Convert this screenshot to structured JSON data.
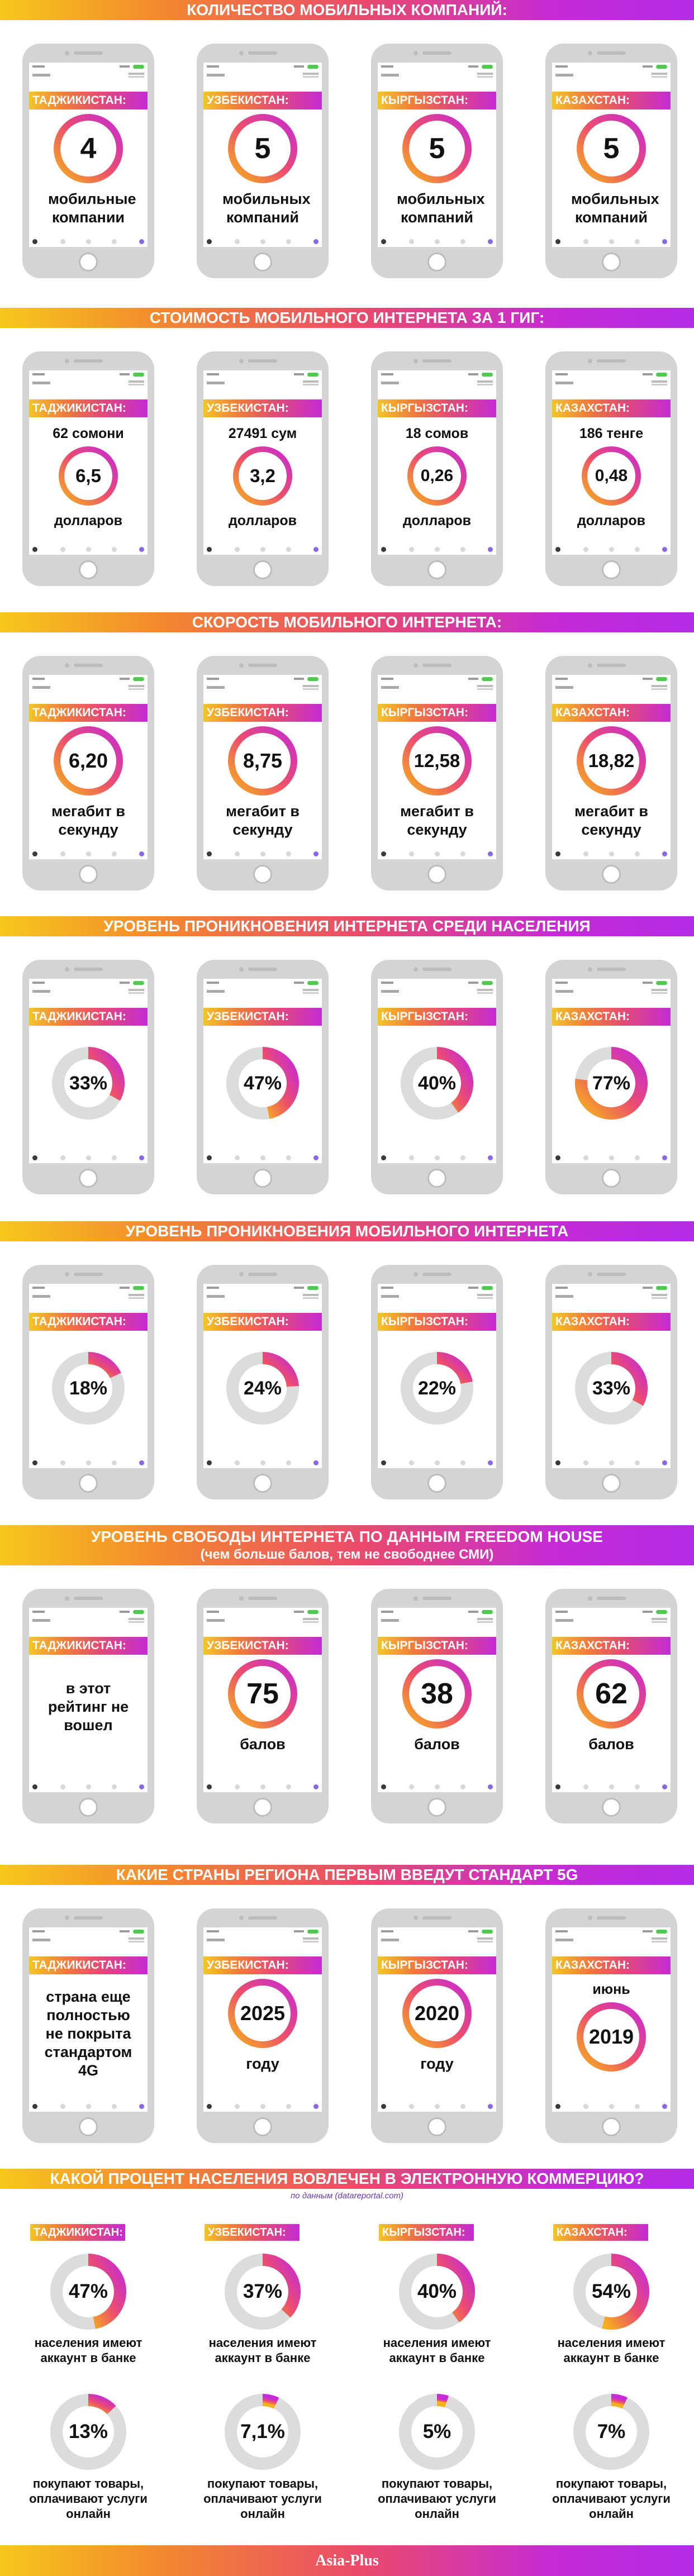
{
  "colors": {
    "ring_start": "#f6b21c",
    "ring_mid": "#ec4c6e",
    "ring_end": "#c52bd6",
    "track": "#dcdcdc"
  },
  "countries": [
    "ТАДЖИКИСТАН:",
    "УЗБЕКИСТАН:",
    "КЫРГЫЗСТАН:",
    "КАЗАХСТАН:"
  ],
  "sections": [
    {
      "title": "КОЛИЧЕСТВО МОБИЛЬНЫХ КОМПАНИЙ:",
      "kind": "ring",
      "items": [
        {
          "value": "4",
          "bottom": "мобильные компании",
          "fraction": 1
        },
        {
          "value": "5",
          "bottom": "мобильных компаний",
          "fraction": 1
        },
        {
          "value": "5",
          "bottom": "мобильных компаний",
          "fraction": 1
        },
        {
          "value": "5",
          "bottom": "мобильных компаний",
          "fraction": 1
        }
      ]
    },
    {
      "title": "СТОИМОСТЬ МОБИЛЬНОГО ИНТЕРНЕТА ЗА 1 ГИГ:",
      "kind": "ring_top",
      "items": [
        {
          "top": "62 сомони",
          "value": "6,5",
          "bottom": "долларов",
          "fraction": 1
        },
        {
          "top": "27491 сум",
          "value": "3,2",
          "bottom": "долларов",
          "fraction": 1
        },
        {
          "top": "18 сомов",
          "value": "0,26",
          "bottom": "долларов",
          "fraction": 1
        },
        {
          "top": "186 тенге",
          "value": "0,48",
          "bottom": "долларов",
          "fraction": 1
        }
      ]
    },
    {
      "title": "СКОРОСТЬ МОБИЛЬНОГО ИНТЕРНЕТА:",
      "kind": "ring",
      "items": [
        {
          "value": "6,20",
          "bottom": "мегабит в секунду",
          "fraction": 1
        },
        {
          "value": "8,75",
          "bottom": "мегабит в секунду",
          "fraction": 1
        },
        {
          "value": "12,58",
          "bottom": "мегабит в секунду",
          "fraction": 1
        },
        {
          "value": "18,82",
          "bottom": "мегабит в секунду",
          "fraction": 1
        }
      ]
    },
    {
      "title": "УРОВЕНЬ ПРОНИКНОВЕНИЯ ИНТЕРНЕТА СРЕДИ НАСЕЛЕНИЯ",
      "kind": "donut",
      "items": [
        {
          "value": "33%",
          "fraction": 0.33
        },
        {
          "value": "47%",
          "fraction": 0.47
        },
        {
          "value": "40%",
          "fraction": 0.4
        },
        {
          "value": "77%",
          "fraction": 0.77
        }
      ]
    },
    {
      "title": "УРОВЕНЬ ПРОНИКНОВЕНИЯ МОБИЛЬНОГО ИНТЕРНЕТА",
      "kind": "donut",
      "items": [
        {
          "value": "18%",
          "fraction": 0.18
        },
        {
          "value": "24%",
          "fraction": 0.24
        },
        {
          "value": "22%",
          "fraction": 0.22
        },
        {
          "value": "33%",
          "fraction": 0.33
        }
      ]
    },
    {
      "title": "УРОВЕНЬ СВОБОДЫ ИНТЕРНЕТА ПО ДАННЫМ FREEDOM HOUSE",
      "subtitle": "(чем больше балов, тем не свободнее СМИ)",
      "kind": "ring",
      "items": [
        {
          "text": "в этот рейтинг не вошел"
        },
        {
          "value": "75",
          "bottom": "балов",
          "fraction": 1
        },
        {
          "value": "38",
          "bottom": "балов",
          "fraction": 1
        },
        {
          "value": "62",
          "bottom": "балов",
          "fraction": 1
        }
      ]
    },
    {
      "title": "КАКИЕ СТРАНЫ РЕГИОНА ПЕРВЫМ ВВЕДУТ СТАНДАРТ 5G",
      "kind": "ring",
      "items": [
        {
          "text": "страна еще полностью не покрыта стандартом 4G"
        },
        {
          "value": "2025",
          "bottom": "году",
          "fraction": 1
        },
        {
          "value": "2020",
          "bottom": "году",
          "fraction": 1
        },
        {
          "top": "июнь",
          "value": "2019",
          "fraction": 1
        }
      ]
    }
  ],
  "ecommerce": {
    "title": "КАКОЙ ПРОЦЕНТ НАСЕЛЕНИЯ ВОВЛЕЧЕН В ЭЛЕКТРОННУЮ КОММЕРЦИЮ?",
    "source": "по данным (datareportal.com)",
    "bank_label": "населения имеют аккаунт в банке",
    "shop_label": "покупают товары, оплачивают услуги онлайн",
    "bank": [
      {
        "value": "47%",
        "fraction": 0.47
      },
      {
        "value": "37%",
        "fraction": 0.37
      },
      {
        "value": "40%",
        "fraction": 0.4
      },
      {
        "value": "54%",
        "fraction": 0.54
      }
    ],
    "shop": [
      {
        "value": "13%",
        "fraction": 0.13
      },
      {
        "value": "7,1%",
        "fraction": 0.071
      },
      {
        "value": "5%",
        "fraction": 0.05
      },
      {
        "value": "7%",
        "fraction": 0.07
      }
    ]
  },
  "footer": {
    "logo": "Asia-Plus"
  },
  "chart_data": [
    {
      "type": "table",
      "title": "КОЛИЧЕСТВО МОБИЛЬНЫХ КОМПАНИЙ:",
      "categories": [
        "ТАДЖИКИСТАН",
        "УЗБЕКИСТАН",
        "КЫРГЫЗСТАН",
        "КАЗАХСТАН"
      ],
      "values": [
        4,
        5,
        5,
        5
      ]
    },
    {
      "type": "table",
      "title": "СТОИМОСТЬ МОБИЛЬНОГО ИНТЕРНЕТА ЗА 1 ГИГ:",
      "categories": [
        "ТАДЖИКИСТАН",
        "УЗБЕКИСТАН",
        "КЫРГЫЗСТАН",
        "КАЗАХСТАН"
      ],
      "values": [
        6.5,
        3.2,
        0.26,
        0.48
      ],
      "ylabel": "долларов"
    },
    {
      "type": "table",
      "title": "СКОРОСТЬ МОБИЛЬНОГО ИНТЕРНЕТА:",
      "categories": [
        "ТАДЖИКИСТАН",
        "УЗБЕКИСТАН",
        "КЫРГЫЗСТАН",
        "КАЗАХСТАН"
      ],
      "values": [
        6.2,
        8.75,
        12.58,
        18.82
      ],
      "ylabel": "мегабит в секунду"
    },
    {
      "type": "pie",
      "title": "УРОВЕНЬ ПРОНИКНОВЕНИЯ ИНТЕРНЕТА СРЕДИ НАСЕЛЕНИЯ",
      "categories": [
        "ТАДЖИКИСТАН",
        "УЗБЕКИСТАН",
        "КЫРГЫЗСТАН",
        "КАЗАХСТАН"
      ],
      "values": [
        33,
        47,
        40,
        77
      ]
    },
    {
      "type": "pie",
      "title": "УРОВЕНЬ ПРОНИКНОВЕНИЯ МОБИЛЬНОГО ИНТЕРНЕТА",
      "categories": [
        "ТАДЖИКИСТАН",
        "УЗБЕКИСТАН",
        "КЫРГЫЗСТАН",
        "КАЗАХСТАН"
      ],
      "values": [
        18,
        24,
        22,
        33
      ]
    },
    {
      "type": "table",
      "title": "УРОВЕНЬ СВОБОДЫ ИНТЕРНЕТА ПО ДАННЫМ FREEDOM HOUSE",
      "categories": [
        "УЗБЕКИСТАН",
        "КЫРГЫЗСТАН",
        "КАЗАХСТАН"
      ],
      "values": [
        75,
        38,
        62
      ],
      "ylabel": "балов"
    },
    {
      "type": "table",
      "title": "КАКИЕ СТРАНЫ РЕГИОНА ПЕРВЫМ ВВЕДУТ СТАНДАРТ 5G",
      "categories": [
        "УЗБЕКИСТАН",
        "КЫРГЫЗСТАН",
        "КАЗАХСТАН"
      ],
      "values": [
        2025,
        2020,
        2019
      ]
    },
    {
      "type": "pie",
      "title": "КАКОЙ ПРОЦЕНТ НАСЕЛЕНИЯ ВОВЛЕЧЕН В ЭЛЕКТРОННУЮ КОММЕРЦИЮ?",
      "categories": [
        "ТАДЖИКИСТАН",
        "УЗБЕКИСТАН",
        "КЫРГЫЗСТАН",
        "КАЗАХСТАН"
      ],
      "series": [
        {
          "name": "населения имеют аккаунт в банке",
          "values": [
            47,
            37,
            40,
            54
          ]
        },
        {
          "name": "покупают товары, оплачивают услуги онлайн",
          "values": [
            13,
            7.1,
            5,
            7
          ]
        }
      ]
    }
  ]
}
